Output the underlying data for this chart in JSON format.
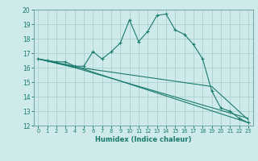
{
  "xlabel": "Humidex (Indice chaleur)",
  "bg_color": "#ceeaea",
  "line_color": "#1a7a6e",
  "grid_color": "#aed4d4",
  "spine_color": "#7aaaaa",
  "xlim": [
    -0.5,
    23.5
  ],
  "ylim": [
    12,
    20
  ],
  "xticks": [
    0,
    1,
    2,
    3,
    4,
    5,
    6,
    7,
    8,
    9,
    10,
    11,
    12,
    13,
    14,
    15,
    16,
    17,
    18,
    19,
    20,
    21,
    22,
    23
  ],
  "yticks": [
    12,
    13,
    14,
    15,
    16,
    17,
    18,
    19,
    20
  ],
  "line1_x": [
    0,
    1,
    2,
    3,
    4,
    5,
    6,
    7,
    8,
    9,
    10,
    11,
    12,
    13,
    14,
    15,
    16,
    17,
    18,
    19,
    20,
    21,
    22,
    23
  ],
  "line1_y": [
    16.6,
    16.5,
    16.4,
    16.4,
    16.1,
    16.1,
    17.1,
    16.6,
    17.1,
    17.7,
    19.3,
    17.8,
    18.5,
    19.6,
    19.7,
    18.6,
    18.3,
    17.6,
    16.6,
    14.4,
    13.2,
    13.0,
    12.5,
    12.2
  ],
  "line2_x": [
    0,
    4,
    23
  ],
  "line2_y": [
    16.6,
    16.1,
    12.2
  ],
  "line3_x": [
    0,
    4,
    23
  ],
  "line3_y": [
    16.6,
    16.0,
    12.5
  ],
  "line4_x": [
    0,
    4,
    19,
    23
  ],
  "line4_y": [
    16.6,
    16.05,
    14.7,
    12.4
  ]
}
